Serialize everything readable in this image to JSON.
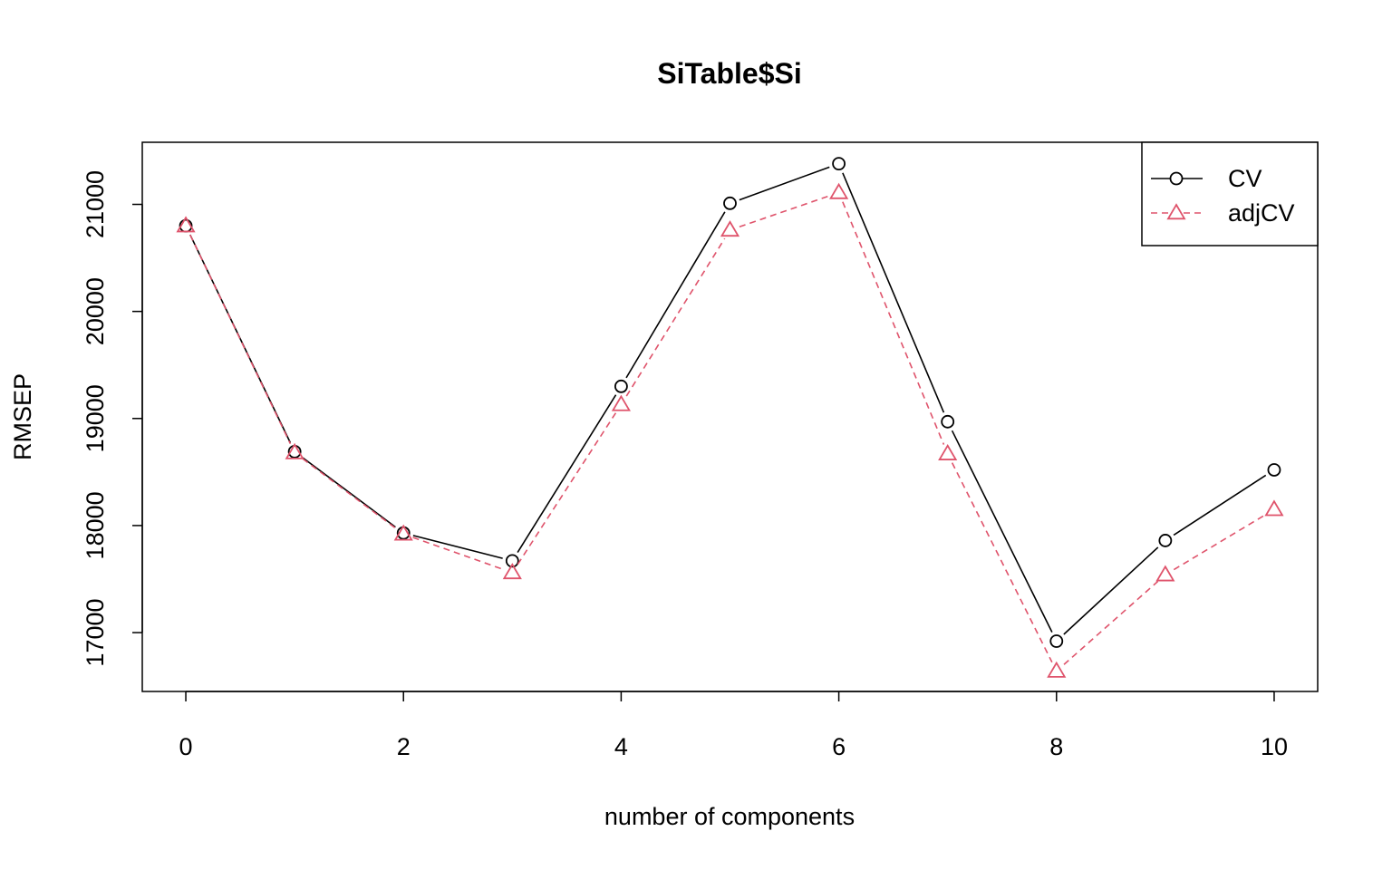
{
  "chart_data": {
    "type": "line",
    "title": "SiTable$Si",
    "xlabel": "number of components",
    "ylabel": "RMSEP",
    "x": [
      0,
      1,
      2,
      3,
      4,
      5,
      6,
      7,
      8,
      9,
      10
    ],
    "xlim": [
      -0.4,
      10.4
    ],
    "ylim": [
      16450,
      21580
    ],
    "x_ticks": [
      0,
      2,
      4,
      6,
      8,
      10
    ],
    "y_ticks": [
      17000,
      18000,
      19000,
      20000,
      21000
    ],
    "legend_position": "top-right",
    "grid": false,
    "series": [
      {
        "name": "CV",
        "values": [
          20800,
          18690,
          17930,
          17670,
          19300,
          21010,
          21380,
          18970,
          16920,
          17860,
          18520
        ],
        "color": "#000000",
        "marker": "circle",
        "line_style": "solid"
      },
      {
        "name": "adjCV",
        "values": [
          20800,
          18680,
          17920,
          17560,
          19130,
          20760,
          21110,
          18670,
          16640,
          17540,
          18150
        ],
        "color": "#DF536B",
        "marker": "triangle",
        "line_style": "dashed"
      }
    ]
  }
}
